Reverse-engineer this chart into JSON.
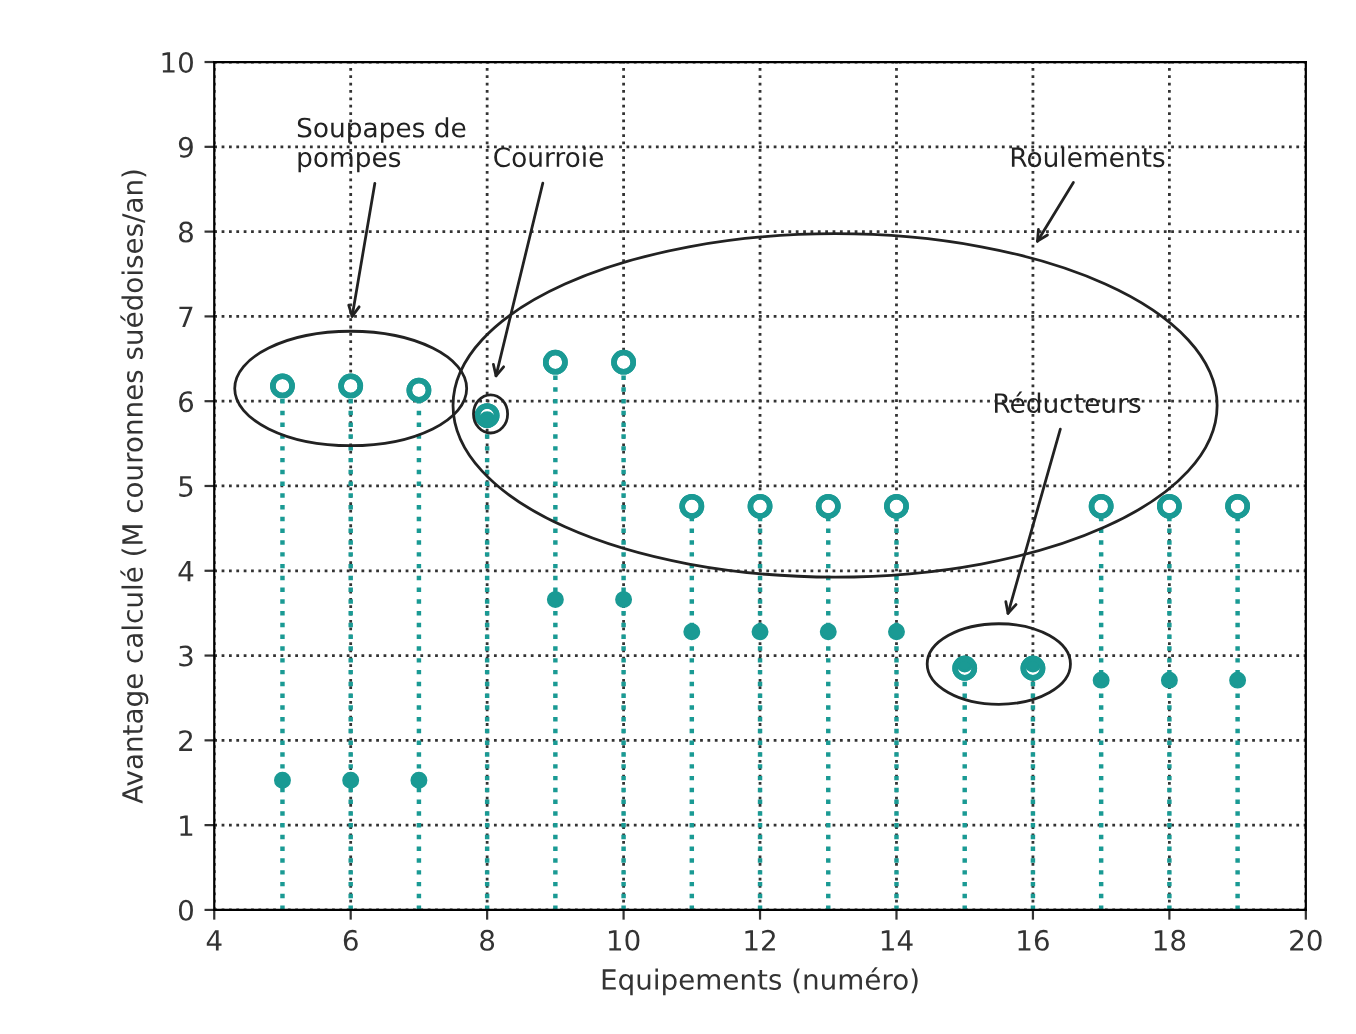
{
  "chart_data": {
    "type": "scatter",
    "xlabel": "Equipements (numéro)",
    "ylabel": "Avantage calculé (M couronnes suédoises/an)",
    "xlim": [
      4,
      20
    ],
    "xticks": [
      4,
      6,
      8,
      10,
      12,
      14,
      16,
      18,
      20
    ],
    "ylim": [
      0,
      10
    ],
    "yticks": [
      0,
      1,
      2,
      3,
      4,
      5,
      6,
      7,
      8,
      9,
      10
    ],
    "grid": true,
    "legend": false,
    "series": [
      {
        "type": "lollipop",
        "color": "#1a9a94",
        "marker": "circle",
        "line_style": "dotted",
        "x": [
          5,
          6,
          7,
          8,
          9,
          10,
          11,
          12,
          13,
          14,
          15,
          16,
          17,
          18,
          19
        ],
        "values": [
          6.18,
          6.18,
          6.13,
          5.83,
          6.46,
          6.46,
          4.76,
          4.76,
          4.76,
          4.76,
          2.85,
          2.85,
          4.76,
          4.76,
          4.76
        ]
      },
      {
        "color": "#1a9a94",
        "marker": "circle",
        "x": [
          5,
          6,
          7,
          8,
          9,
          10,
          11,
          12,
          13,
          14,
          15,
          16,
          17,
          18,
          19
        ],
        "values": [
          1.53,
          1.53,
          1.53,
          5.78,
          3.66,
          3.66,
          3.28,
          3.28,
          3.28,
          3.28,
          2.9,
          2.9,
          2.71,
          2.71,
          2.71
        ]
      }
    ],
    "annotations": [
      "Soupapes de\npompes",
      "Courroie",
      "Roulements",
      "Réducteurs"
    ]
  }
}
